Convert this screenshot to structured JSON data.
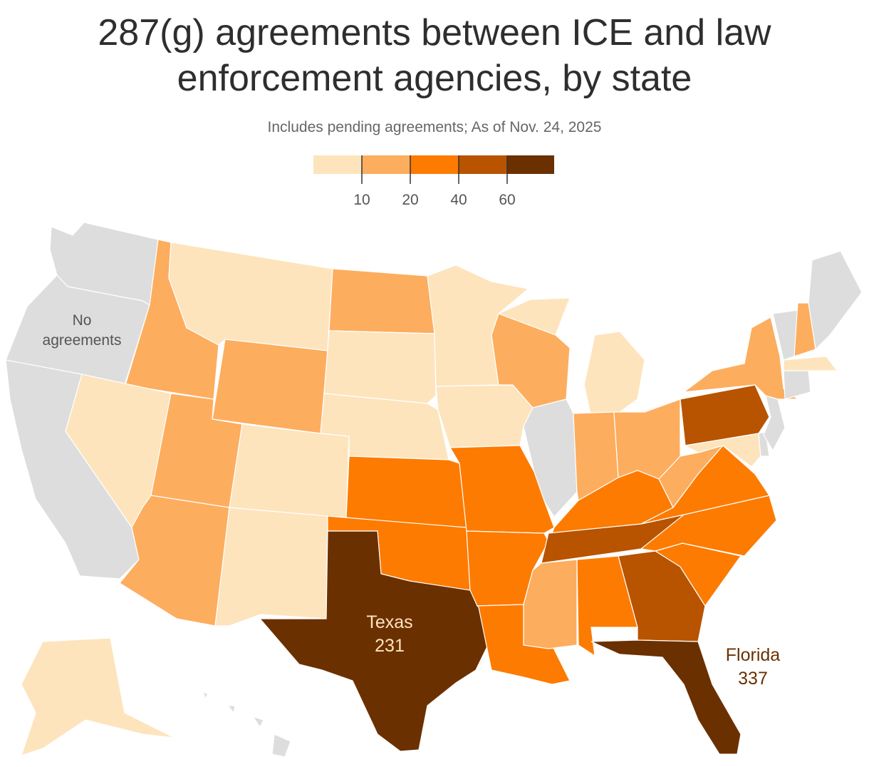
{
  "title": "287(g) agreements between ICE and law enforcement agencies, by state",
  "subtitle": "Includes pending agreements; As of Nov. 24, 2025",
  "legend": {
    "breaks": [
      10,
      20,
      40,
      60
    ],
    "tick_labels": [
      "10",
      "20",
      "40",
      "60"
    ],
    "colors": [
      "#fde4bd",
      "#fdad5e",
      "#fd7b00",
      "#b85300",
      "#6b3000"
    ],
    "no_data_color": "#dddddd"
  },
  "map_labels": {
    "no_agreements": [
      "No",
      "agreements"
    ],
    "texas": {
      "name": "Texas",
      "value": "231"
    },
    "florida": {
      "name": "Florida",
      "value": "337"
    }
  },
  "state_bins": {
    "WA": "none",
    "OR": "none",
    "CA": "none",
    "IL": "none",
    "VT": "none",
    "ME": "none",
    "CT": "none",
    "NJ": "none",
    "DE": "none",
    "HI": "none",
    "ID": 1,
    "WY": 1,
    "UT": 1,
    "AZ": 1,
    "ND": 1,
    "WI": 1,
    "IN": 1,
    "OH": 1,
    "NY": 1,
    "WV": 1,
    "MS": 1,
    "NH": 1,
    "MT": 0,
    "NV": 0,
    "CO": 0,
    "NM": 0,
    "SD": 0,
    "NE": 0,
    "MN": 0,
    "IA": 0,
    "MI": 0,
    "MA": 0,
    "MD": 0,
    "AK": 0,
    "KS": 2,
    "OK": 2,
    "MO": 2,
    "AR": 2,
    "LA": 2,
    "KY": 2,
    "VA": 2,
    "NC": 2,
    "SC": 2,
    "AL": 2,
    "PA": 3,
    "TN": 3,
    "GA": 3,
    "TX": 4,
    "FL": 4
  }
}
